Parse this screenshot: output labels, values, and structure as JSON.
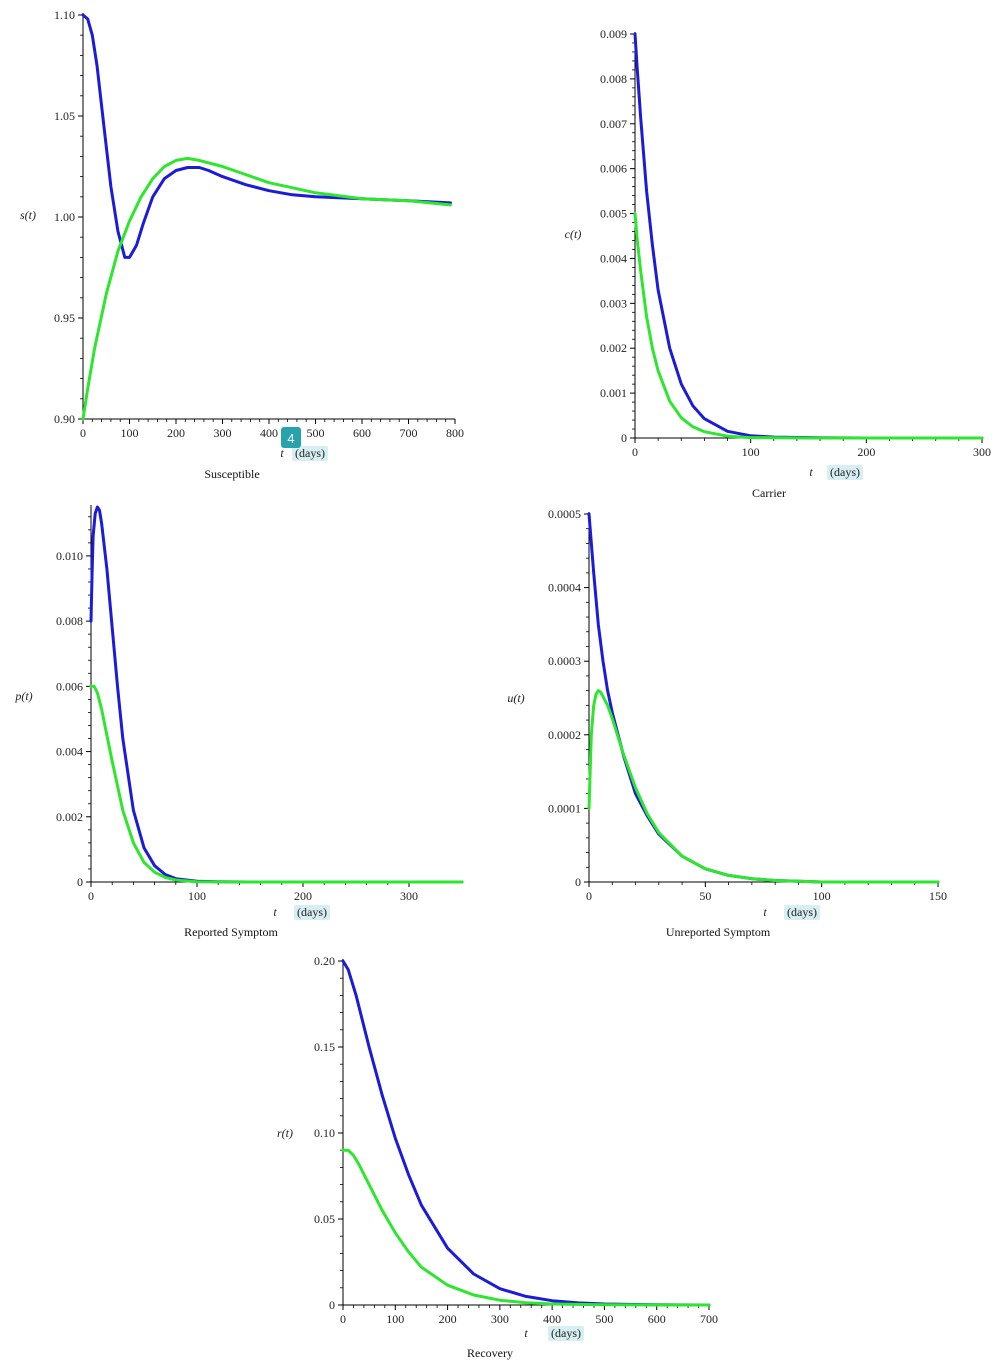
{
  "colors": {
    "blue": "#1b1bd8",
    "green": "#2ee62e",
    "axis": "#000000"
  },
  "page_badge": "4",
  "chart_data": [
    {
      "type": "line",
      "caption": "Susceptible",
      "ylabel": "s(t)",
      "xlabel_var": "t",
      "xlabel_unit": "(days)",
      "xlim": [
        0,
        800
      ],
      "ylim": [
        0.9,
        1.1
      ],
      "xticks": [
        0,
        100,
        200,
        300,
        400,
        500,
        600,
        700,
        800
      ],
      "yticks": [
        0.9,
        0.95,
        1.0,
        1.05,
        1.1
      ],
      "ytick_labels": [
        "0.90",
        "0.95",
        "1.00",
        "1.05",
        "1.10"
      ],
      "series": [
        {
          "color": "blue",
          "x": [
            0,
            10,
            20,
            30,
            45,
            60,
            75,
            90,
            100,
            115,
            130,
            150,
            175,
            200,
            225,
            250,
            270,
            300,
            350,
            400,
            450,
            500,
            600,
            700,
            790
          ],
          "y": [
            1.1,
            1.098,
            1.09,
            1.075,
            1.045,
            1.015,
            0.993,
            0.98,
            0.98,
            0.986,
            0.997,
            1.01,
            1.019,
            1.023,
            1.0245,
            1.0245,
            1.023,
            1.02,
            1.016,
            1.013,
            1.011,
            1.01,
            1.009,
            1.008,
            1.007
          ]
        },
        {
          "color": "green",
          "x": [
            0,
            10,
            25,
            50,
            75,
            100,
            125,
            150,
            175,
            200,
            225,
            250,
            300,
            400,
            500,
            600,
            700,
            790
          ],
          "y": [
            0.9,
            0.915,
            0.935,
            0.962,
            0.983,
            0.998,
            1.01,
            1.019,
            1.025,
            1.028,
            1.029,
            1.028,
            1.025,
            1.017,
            1.012,
            1.009,
            1.008,
            1.006
          ]
        }
      ]
    },
    {
      "type": "line",
      "caption": "Carrier",
      "ylabel": "c(t)",
      "xlabel_var": "t",
      "xlabel_unit": "(days)",
      "xlim": [
        0,
        300
      ],
      "ylim": [
        0,
        0.009
      ],
      "xticks": [
        0,
        100,
        200,
        300
      ],
      "yticks": [
        0,
        0.001,
        0.002,
        0.003,
        0.004,
        0.005,
        0.006,
        0.007,
        0.008,
        0.009
      ],
      "ytick_labels": [
        "0",
        "0.001",
        "0.002",
        "0.003",
        "0.004",
        "0.005",
        "0.006",
        "0.007",
        "0.008",
        "0.009"
      ],
      "series": [
        {
          "color": "blue",
          "x": [
            0,
            2,
            5,
            10,
            15,
            20,
            30,
            40,
            50,
            60,
            80,
            100,
            120,
            160,
            200,
            300
          ],
          "y": [
            0.009,
            0.0082,
            0.0071,
            0.0055,
            0.0043,
            0.0033,
            0.002,
            0.0012,
            0.00072,
            0.00043,
            0.00015,
            5e-05,
            2e-05,
            5e-06,
            0,
            0
          ]
        },
        {
          "color": "green",
          "x": [
            0,
            2,
            5,
            10,
            15,
            20,
            30,
            40,
            50,
            60,
            80,
            100,
            150,
            300
          ],
          "y": [
            0.005,
            0.0044,
            0.0037,
            0.0027,
            0.002,
            0.0015,
            0.00082,
            0.00045,
            0.00025,
            0.00014,
            4e-05,
            1e-05,
            0,
            0
          ]
        }
      ]
    },
    {
      "type": "line",
      "caption": "Reported Symptom",
      "ylabel": "p(t)",
      "xlabel_var": "t",
      "xlabel_unit": "(days)",
      "xlim": [
        0,
        350
      ],
      "ylim": [
        0,
        0.0115
      ],
      "xticks": [
        0,
        100,
        200,
        300
      ],
      "yticks": [
        0,
        0.002,
        0.004,
        0.006,
        0.008,
        0.01
      ],
      "ytick_labels": [
        "0",
        "0.002",
        "0.004",
        "0.006",
        "0.008",
        "0.010"
      ],
      "series": [
        {
          "color": "blue",
          "x": [
            0,
            1,
            2,
            4,
            6,
            8,
            10,
            15,
            20,
            25,
            30,
            40,
            50,
            60,
            70,
            80,
            100,
            120,
            150,
            200,
            350
          ],
          "y": [
            0.008,
            0.0095,
            0.0106,
            0.0113,
            0.0115,
            0.0114,
            0.011,
            0.0096,
            0.0078,
            0.006,
            0.0044,
            0.0022,
            0.00105,
            0.0005,
            0.00023,
            0.0001,
            2e-05,
            5e-06,
            0,
            0,
            0
          ]
        },
        {
          "color": "green",
          "x": [
            0,
            3,
            6,
            10,
            15,
            20,
            30,
            40,
            50,
            60,
            70,
            80,
            100,
            150,
            350
          ],
          "y": [
            0.006,
            0.006,
            0.0058,
            0.0053,
            0.0045,
            0.0037,
            0.0022,
            0.0012,
            0.0006,
            0.0003,
            0.00014,
            6e-05,
            1e-05,
            0,
            0
          ]
        }
      ]
    },
    {
      "type": "line",
      "caption": "Unreported Symptom",
      "ylabel": "u(t)",
      "xlabel_var": "t",
      "xlabel_unit": "(days)",
      "xlim": [
        0,
        150
      ],
      "ylim": [
        0,
        0.0005
      ],
      "xticks": [
        0,
        50,
        100,
        150
      ],
      "yticks": [
        0,
        0.0001,
        0.0002,
        0.0003,
        0.0004,
        0.0005
      ],
      "ytick_labels": [
        "0",
        "0.0001",
        "0.0002",
        "0.0003",
        "0.0004",
        "0.0005"
      ],
      "series": [
        {
          "color": "blue",
          "x": [
            0,
            2,
            4,
            6,
            8,
            10,
            15,
            20,
            25,
            30,
            40,
            50,
            60,
            70,
            80,
            100,
            150
          ],
          "y": [
            0.0005,
            0.00042,
            0.00035,
            0.0003,
            0.00026,
            0.00023,
            0.00017,
            0.00012,
            9e-05,
            6.5e-05,
            3.5e-05,
            1.8e-05,
            9e-06,
            4.5e-06,
            2e-06,
            0,
            0
          ]
        },
        {
          "color": "green",
          "x": [
            0,
            1,
            2,
            3,
            4,
            5,
            6,
            8,
            10,
            15,
            20,
            25,
            30,
            40,
            50,
            60,
            70,
            80,
            100,
            150
          ],
          "y": [
            0.0001,
            0.0002,
            0.00024,
            0.000255,
            0.00026,
            0.000258,
            0.000252,
            0.00024,
            0.000222,
            0.000172,
            0.000128,
            9.3e-05,
            6.7e-05,
            3.5e-05,
            1.8e-05,
            9e-06,
            4.5e-06,
            2e-06,
            0,
            0
          ]
        }
      ]
    },
    {
      "type": "line",
      "caption": "Recovery",
      "ylabel": "r(t)",
      "xlabel_var": "t",
      "xlabel_unit": "(days)",
      "xlim": [
        0,
        700
      ],
      "ylim": [
        0,
        0.2
      ],
      "xticks": [
        0,
        100,
        200,
        300,
        400,
        500,
        600,
        700
      ],
      "yticks": [
        0,
        0.05,
        0.1,
        0.15,
        0.2
      ],
      "ytick_labels": [
        "0",
        "0.05",
        "0.10",
        "0.15",
        "0.20"
      ],
      "series": [
        {
          "color": "blue",
          "x": [
            0,
            10,
            25,
            50,
            75,
            100,
            125,
            150,
            200,
            250,
            300,
            350,
            400,
            450,
            500,
            600,
            700
          ],
          "y": [
            0.2,
            0.195,
            0.18,
            0.15,
            0.122,
            0.097,
            0.076,
            0.058,
            0.033,
            0.018,
            0.0095,
            0.005,
            0.0025,
            0.0012,
            0.0006,
            0.0001,
            0
          ]
        },
        {
          "color": "green",
          "x": [
            0,
            10,
            20,
            30,
            50,
            75,
            100,
            125,
            150,
            200,
            250,
            300,
            350,
            400,
            500,
            600,
            700
          ],
          "y": [
            0.09,
            0.09,
            0.087,
            0.082,
            0.07,
            0.055,
            0.042,
            0.031,
            0.022,
            0.0115,
            0.0058,
            0.0028,
            0.0013,
            0.0006,
            0.0001,
            0,
            0
          ]
        }
      ]
    }
  ]
}
